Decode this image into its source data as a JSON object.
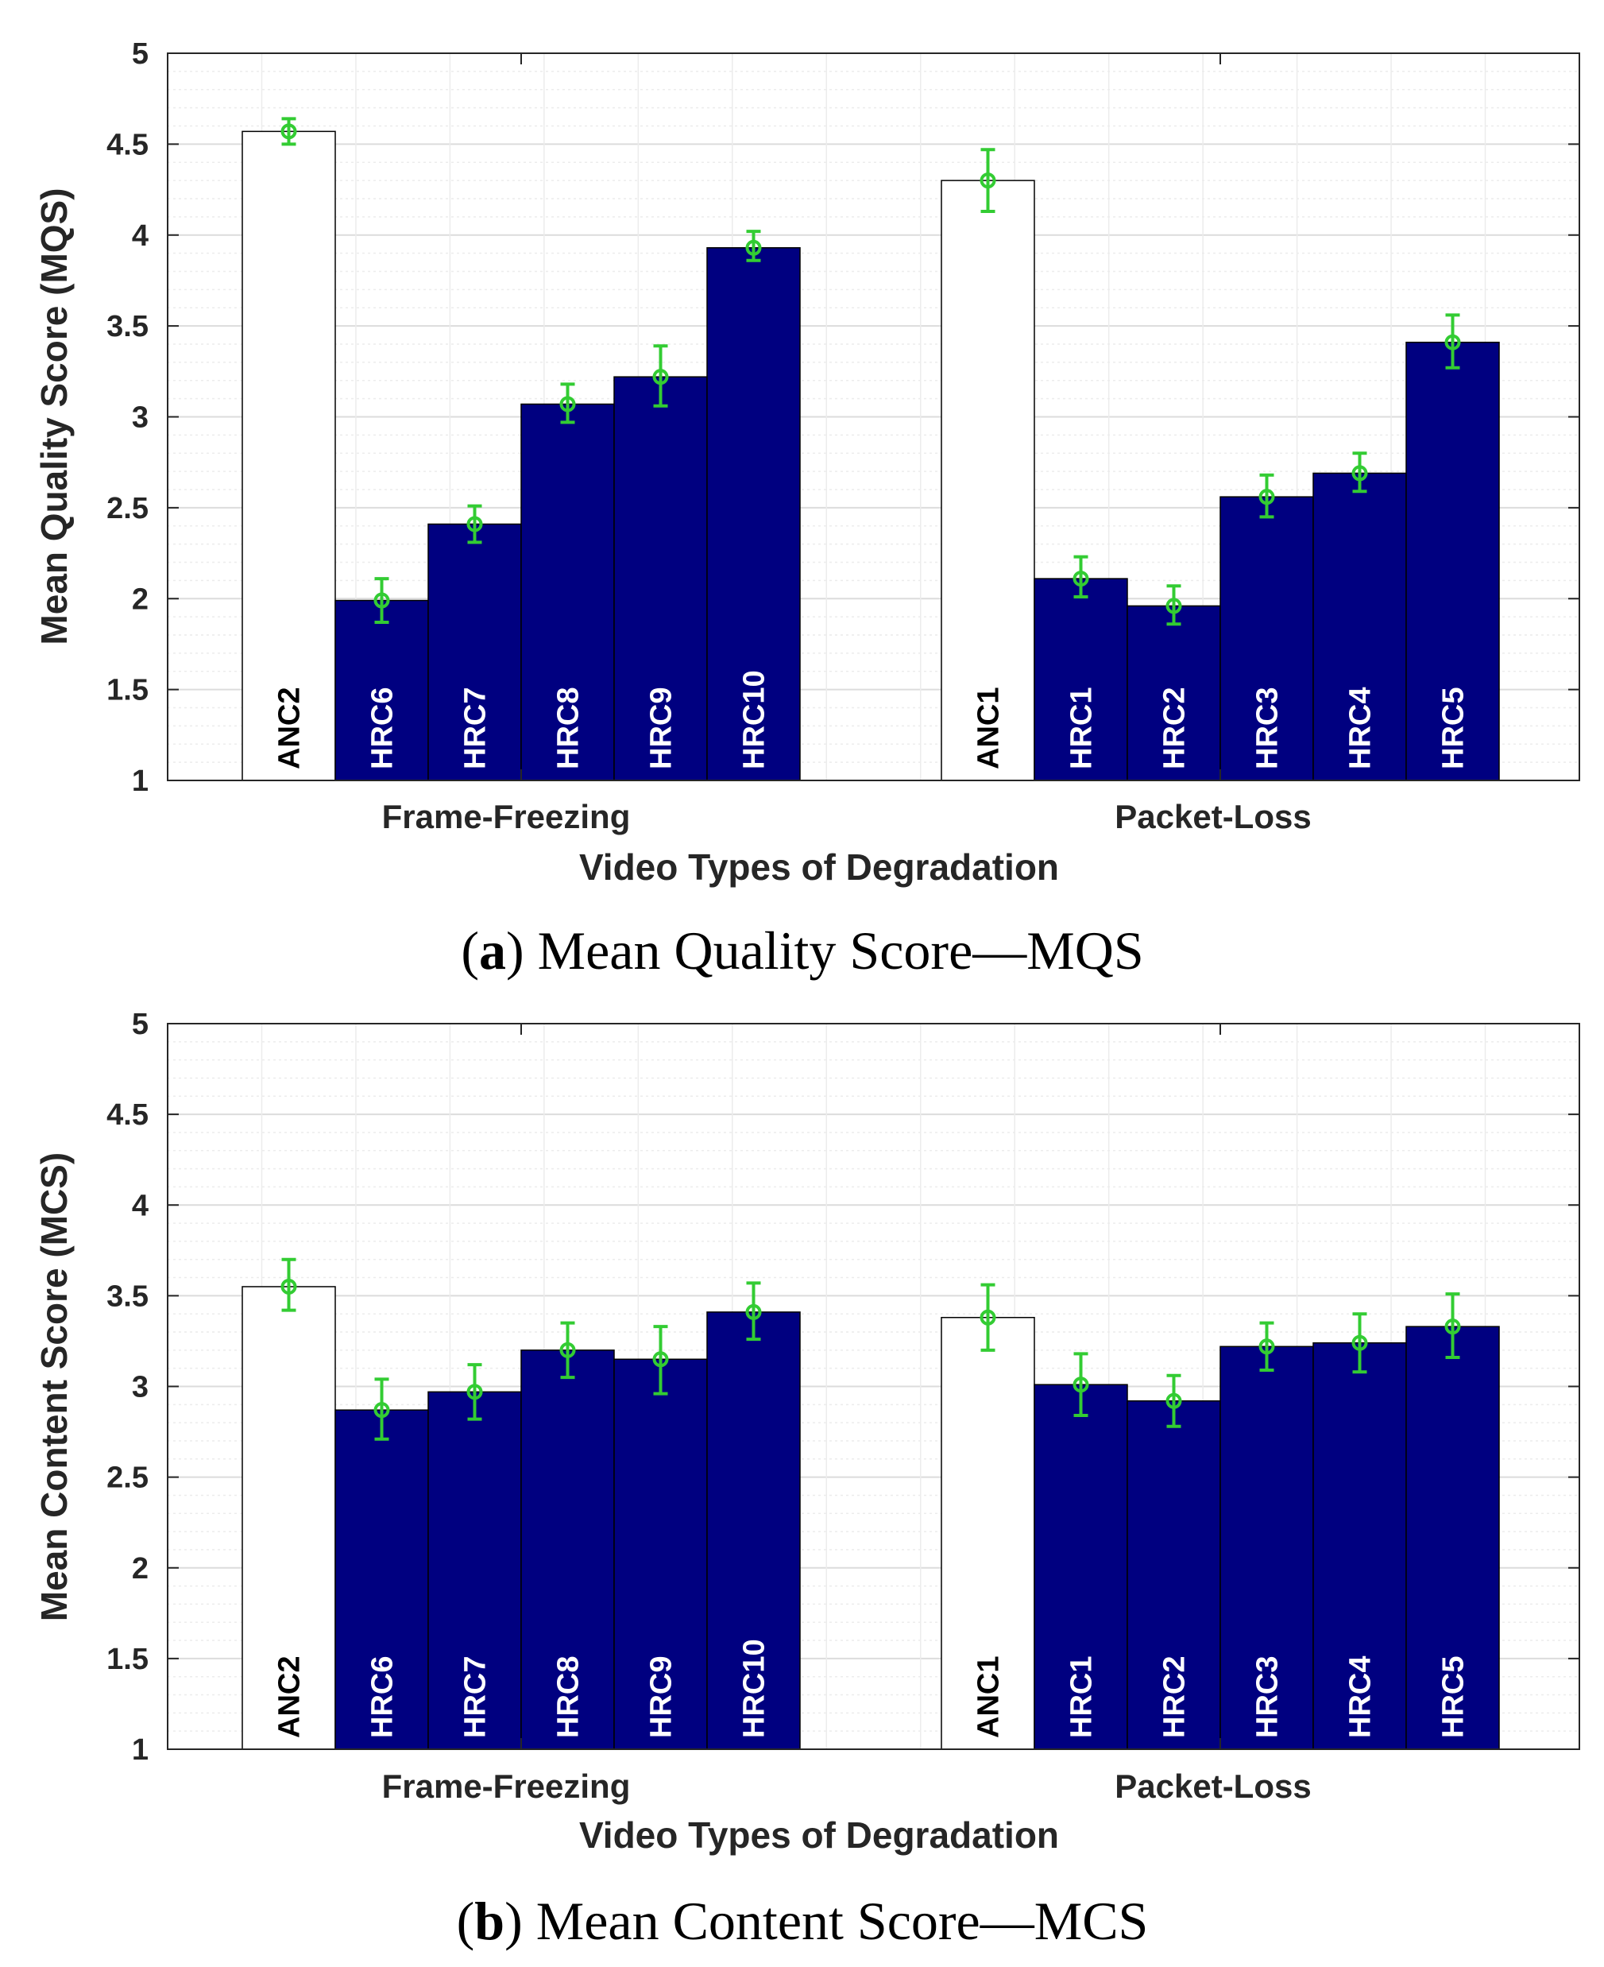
{
  "colors": {
    "bar_fill": "#000080",
    "anchor_fill": "#ffffff",
    "bar_stroke": "#000000",
    "errorbar": "#33cc33",
    "axis": "#262626",
    "grid_major": "#dcdcdc",
    "grid_minor": "#ececec",
    "label_on_dark": "#ffffff",
    "label_on_light": "#000000"
  },
  "chart_data": [
    {
      "type": "bar",
      "id": "a",
      "title": "",
      "xlabel": "Video Types of Degradation",
      "ylabel": "Mean Quality Score (MQS)",
      "ylim": [
        1,
        5
      ],
      "yticks": [
        "1",
        "1.5",
        "2",
        "2.5",
        "3",
        "3.5",
        "4",
        "4.5",
        "5"
      ],
      "grid": true,
      "minor_grid": true,
      "groups": [
        {
          "name": "Frame-Freezing",
          "bars": [
            {
              "label": "ANC2",
              "value": 4.57,
              "err_low": 4.5,
              "err_high": 4.64,
              "anchor": true
            },
            {
              "label": "HRC6",
              "value": 1.99,
              "err_low": 1.87,
              "err_high": 2.11,
              "anchor": false
            },
            {
              "label": "HRC7",
              "value": 2.41,
              "err_low": 2.31,
              "err_high": 2.51,
              "anchor": false
            },
            {
              "label": "HRC8",
              "value": 3.07,
              "err_low": 2.97,
              "err_high": 3.18,
              "anchor": false
            },
            {
              "label": "HRC9",
              "value": 3.22,
              "err_low": 3.06,
              "err_high": 3.39,
              "anchor": false
            },
            {
              "label": "HRC10",
              "value": 3.93,
              "err_low": 3.86,
              "err_high": 4.02,
              "anchor": false
            }
          ]
        },
        {
          "name": "Packet-Loss",
          "bars": [
            {
              "label": "ANC1",
              "value": 4.3,
              "err_low": 4.13,
              "err_high": 4.47,
              "anchor": true
            },
            {
              "label": "HRC1",
              "value": 2.11,
              "err_low": 2.01,
              "err_high": 2.23,
              "anchor": false
            },
            {
              "label": "HRC2",
              "value": 1.96,
              "err_low": 1.86,
              "err_high": 2.07,
              "anchor": false
            },
            {
              "label": "HRC3",
              "value": 2.56,
              "err_low": 2.45,
              "err_high": 2.68,
              "anchor": false
            },
            {
              "label": "HRC4",
              "value": 2.69,
              "err_low": 2.59,
              "err_high": 2.8,
              "anchor": false
            },
            {
              "label": "HRC5",
              "value": 3.41,
              "err_low": 3.27,
              "err_high": 3.56,
              "anchor": false
            }
          ]
        }
      ],
      "caption_letter": "a",
      "caption_text": "Mean Quality Score—MQS"
    },
    {
      "type": "bar",
      "id": "b",
      "title": "",
      "xlabel": "Video Types of Degradation",
      "ylabel": "Mean Content Score (MCS)",
      "ylim": [
        1,
        5
      ],
      "yticks": [
        "1",
        "1.5",
        "2",
        "2.5",
        "3",
        "3.5",
        "4",
        "4.5",
        "5"
      ],
      "grid": true,
      "minor_grid": true,
      "groups": [
        {
          "name": "Frame-Freezing",
          "bars": [
            {
              "label": "ANC2",
              "value": 3.55,
              "err_low": 3.42,
              "err_high": 3.7,
              "anchor": true
            },
            {
              "label": "HRC6",
              "value": 2.87,
              "err_low": 2.71,
              "err_high": 3.04,
              "anchor": false
            },
            {
              "label": "HRC7",
              "value": 2.97,
              "err_low": 2.82,
              "err_high": 3.12,
              "anchor": false
            },
            {
              "label": "HRC8",
              "value": 3.2,
              "err_low": 3.05,
              "err_high": 3.35,
              "anchor": false
            },
            {
              "label": "HRC9",
              "value": 3.15,
              "err_low": 2.96,
              "err_high": 3.33,
              "anchor": false
            },
            {
              "label": "HRC10",
              "value": 3.41,
              "err_low": 3.26,
              "err_high": 3.57,
              "anchor": false
            }
          ]
        },
        {
          "name": "Packet-Loss",
          "bars": [
            {
              "label": "ANC1",
              "value": 3.38,
              "err_low": 3.2,
              "err_high": 3.56,
              "anchor": true
            },
            {
              "label": "HRC1",
              "value": 3.01,
              "err_low": 2.84,
              "err_high": 3.18,
              "anchor": false
            },
            {
              "label": "HRC2",
              "value": 2.92,
              "err_low": 2.78,
              "err_high": 3.06,
              "anchor": false
            },
            {
              "label": "HRC3",
              "value": 3.22,
              "err_low": 3.09,
              "err_high": 3.35,
              "anchor": false
            },
            {
              "label": "HRC4",
              "value": 3.24,
              "err_low": 3.08,
              "err_high": 3.4,
              "anchor": false
            },
            {
              "label": "HRC5",
              "value": 3.33,
              "err_low": 3.16,
              "err_high": 3.51,
              "anchor": false
            }
          ]
        }
      ],
      "caption_letter": "b",
      "caption_text": "Mean Content Score—MCS"
    }
  ]
}
